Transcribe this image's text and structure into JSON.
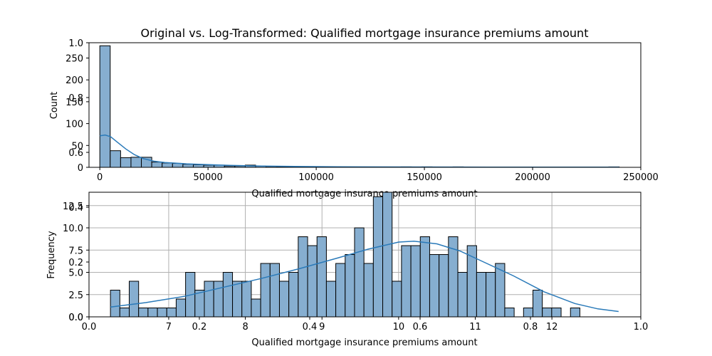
{
  "figure": {
    "title": "Original vs. Log-Transformed: Qualified mortgage insurance premiums amount"
  },
  "overlay_axis": {
    "x_ticks": [
      "0.0",
      "0.2",
      "0.4",
      "0.6",
      "0.8",
      "1.0"
    ],
    "y_ticks": [
      "0.0",
      "0.2",
      "0.4",
      "0.6",
      "0.8",
      "1.0"
    ]
  },
  "colors": {
    "bar_fill": "#86aed0",
    "bar_edge": "#000000",
    "kde_line": "#2a7ab9",
    "grid": "#b0b0b0"
  },
  "chart_data": [
    {
      "type": "bar",
      "subtype": "histogram",
      "xlabel": "Qualified mortgage insurance premiums amount",
      "ylabel": "Count",
      "xlim": [
        -5000,
        250000
      ],
      "ylim": [
        0,
        285
      ],
      "x_ticks": [
        0,
        50000,
        100000,
        150000,
        200000,
        250000
      ],
      "x_tick_labels": [
        "0",
        "50000",
        "100000",
        "150000",
        "200000",
        "250000"
      ],
      "y_ticks": [
        0,
        50,
        100,
        150,
        200,
        250
      ],
      "y_tick_labels": [
        "0",
        "50",
        "100",
        "150",
        "200",
        "250"
      ],
      "grid": false,
      "bin_start": 0,
      "bin_width": 4800,
      "counts": [
        278,
        38,
        22,
        23,
        23,
        12,
        10,
        9,
        7,
        6,
        5,
        5,
        3,
        3,
        5,
        3,
        2,
        1,
        1,
        1,
        1,
        1,
        1,
        0,
        0,
        0,
        0,
        0,
        0,
        1,
        0,
        1,
        0,
        0,
        1,
        0,
        0,
        0,
        0,
        0,
        0,
        0,
        0,
        0,
        0,
        0,
        0,
        0,
        0,
        1
      ],
      "kde": {
        "x": [
          0,
          2500,
          5000,
          8000,
          12000,
          16000,
          20000,
          25000,
          30000,
          40000,
          50000,
          60000,
          75000,
          90000,
          110000,
          140000,
          180000,
          240000
        ],
        "y": [
          72,
          74,
          70,
          58,
          42,
          29,
          20,
          14,
          11,
          8,
          6,
          4.5,
          3,
          2,
          1.2,
          0.8,
          0.5,
          0.3
        ]
      }
    },
    {
      "type": "bar",
      "subtype": "histogram",
      "xlabel": "Qualified mortgage insurance premiums amount",
      "ylabel": "Frequency",
      "xlim": [
        5.96,
        13.16
      ],
      "ylim": [
        0,
        14
      ],
      "x_ticks": [
        7,
        8,
        9,
        10,
        11,
        12
      ],
      "x_tick_labels": [
        "7",
        "8",
        "9",
        "10",
        "11",
        "12"
      ],
      "y_ticks": [
        0,
        2.5,
        5,
        7.5,
        10,
        12.5
      ],
      "y_tick_labels": [
        "0.0",
        "2.5",
        "5.0",
        "7.5",
        "10.0",
        "12.5"
      ],
      "grid": true,
      "bin_start": 6.24,
      "bin_width": 0.1225,
      "counts": [
        3,
        1,
        4,
        1,
        1,
        1,
        1,
        2,
        5,
        3,
        4,
        4,
        5,
        4,
        4,
        2,
        6,
        6,
        4,
        5,
        9,
        8,
        9,
        4,
        6,
        7,
        10,
        6,
        13.5,
        14,
        4,
        8,
        8,
        9,
        7,
        7,
        9,
        5,
        8,
        5,
        5,
        6,
        1,
        0,
        1,
        3,
        1,
        1,
        0,
        1
      ],
      "kde": {
        "x": [
          6.24,
          6.7,
          7.2,
          7.7,
          8.2,
          8.7,
          9.2,
          9.6,
          10.0,
          10.2,
          10.5,
          10.8,
          11.1,
          11.5,
          11.9,
          12.3,
          12.6,
          12.87
        ],
        "y": [
          1.1,
          1.6,
          2.3,
          3.3,
          4.3,
          5.4,
          6.6,
          7.6,
          8.4,
          8.5,
          8.2,
          7.4,
          6.2,
          4.6,
          2.8,
          1.5,
          0.9,
          0.6
        ]
      }
    }
  ]
}
